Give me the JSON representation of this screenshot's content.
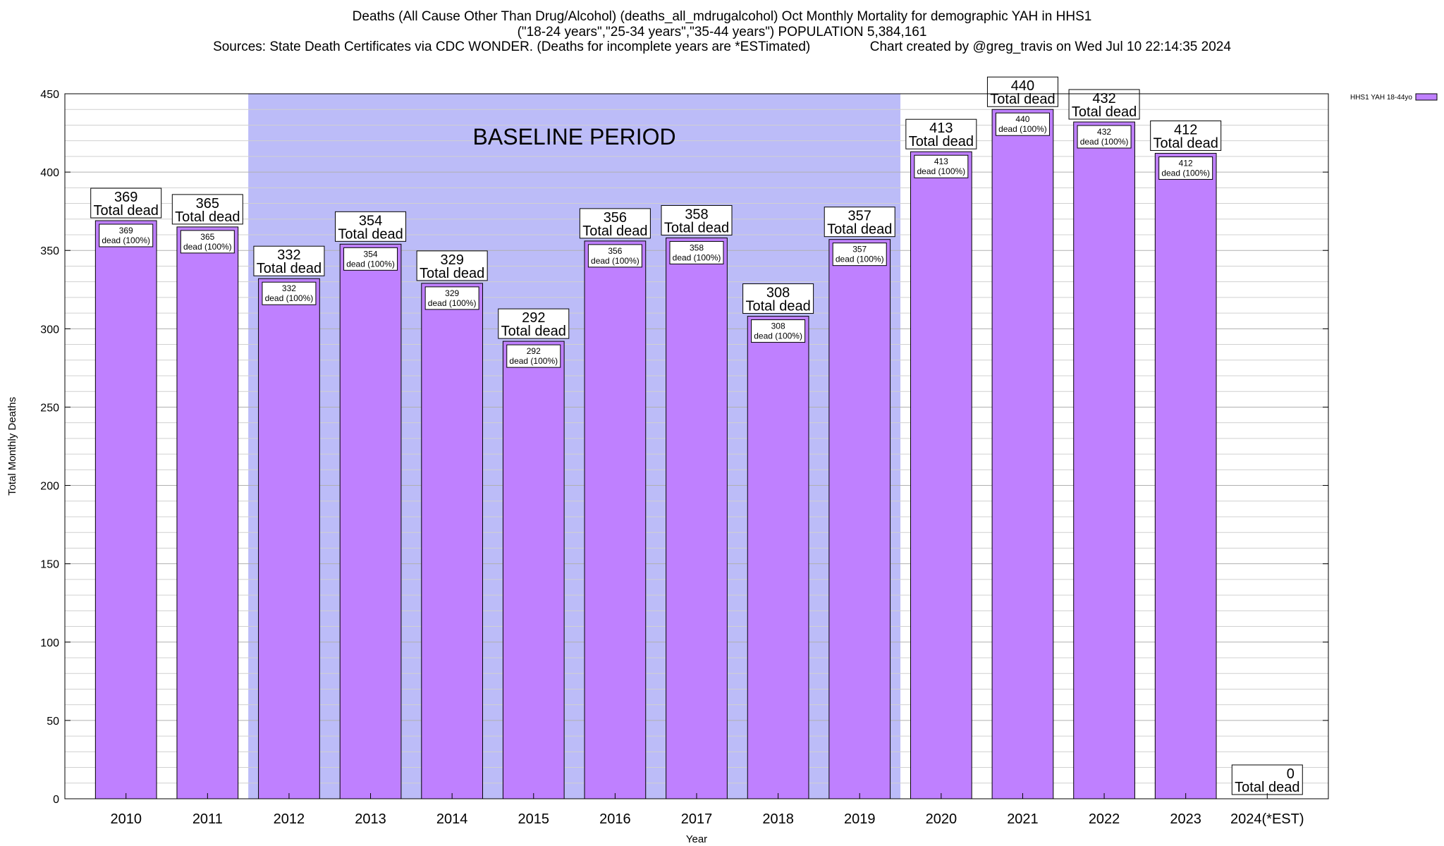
{
  "title": {
    "line1": "Deaths (All Cause Other Than Drug/Alcohol) (deaths_all_mdrugalcohol) Oct Monthly Mortality for demographic YAH in HHS1",
    "line2": "(\"18-24 years\",\"25-34 years\",\"35-44 years\") POPULATION 5,384,161",
    "line3": "Sources: State Death Certificates via CDC WONDER. (Deaths for incomplete years are *ESTimated)                Chart created by @greg_travis on Wed Jul 10 22:14:35 2024"
  },
  "chart_data": {
    "type": "bar",
    "xlabel": "Year",
    "ylabel": "Total Monthly Deaths",
    "ylim": [
      0,
      450
    ],
    "ytick_step": 50,
    "minor_gridline_step": 10,
    "grid": true,
    "categories": [
      "2010",
      "2011",
      "2012",
      "2013",
      "2014",
      "2015",
      "2016",
      "2017",
      "2018",
      "2019",
      "2020",
      "2021",
      "2022",
      "2023",
      "2024(*EST)"
    ],
    "series": [
      {
        "name": "HHS1 YAH 18-44yo",
        "color": "#bf80ff",
        "values": [
          369,
          365,
          332,
          354,
          329,
          292,
          356,
          358,
          308,
          357,
          413,
          440,
          432,
          412,
          0
        ]
      }
    ],
    "total_label_suffix": "Total dead",
    "inner_label_suffix": "dead (100%)",
    "baseline_period": {
      "label": "BASELINE PERIOD",
      "start": "2012",
      "end": "2019",
      "color": "#bcbcf8"
    },
    "legend": {
      "placement": "top-right",
      "label": "HHS1 YAH 18-44yo"
    }
  }
}
